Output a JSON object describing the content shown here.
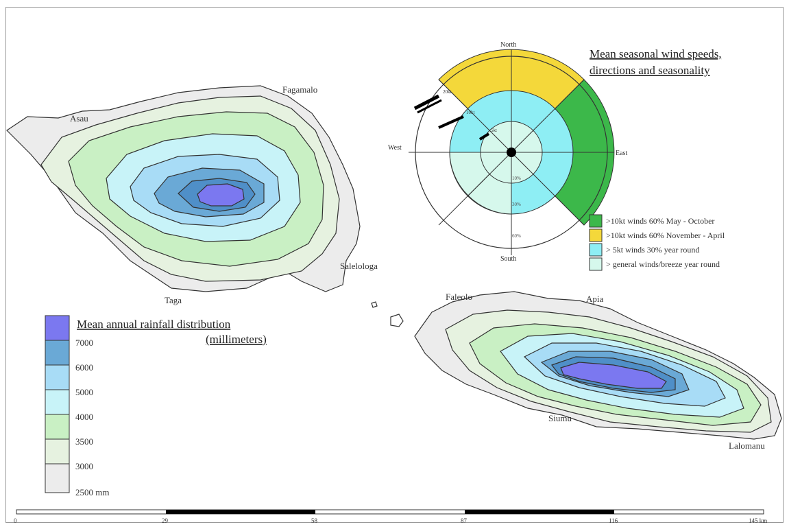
{
  "rainfall_legend": {
    "title_line1": "Mean annual rainfall distribution",
    "title_line2": "(millimeters)",
    "classes": [
      {
        "color": "#7b78f0",
        "label": "7000"
      },
      {
        "color": "#6aa9d6",
        "label": "6000"
      },
      {
        "color": "#a8dcf6",
        "label": "5000"
      },
      {
        "color": "#c8f3f8",
        "label": "4000"
      },
      {
        "color": "#c9f0c4",
        "label": "3500"
      },
      {
        "color": "#e6f2e0",
        "label": "3000"
      },
      {
        "color": "#ececec",
        "label": "2500 mm"
      }
    ]
  },
  "wind_rose": {
    "title_line1": "Mean seasonal wind speeds,",
    "title_line2": "directions and seasonality",
    "compass": {
      "north": "North",
      "south": "South",
      "east": "East",
      "west": "West"
    },
    "ring_labels": [
      "10%",
      "30%",
      "60%"
    ],
    "speed_labels": [
      "20kt",
      "10kt",
      "5kt"
    ],
    "legend": [
      {
        "color": "#3cb84a",
        "label": ">10kt winds 60% May - October"
      },
      {
        "color": "#f4d83a",
        "label": ">10kt winds 60% November - April"
      },
      {
        "color": "#8eeef4",
        "label": "> 5kt winds 30% year round"
      },
      {
        "color": "#d6f8ec",
        "label": "> general winds/breeze year round"
      }
    ]
  },
  "places": {
    "fagamalo": "Fagamalo",
    "asau": "Asau",
    "salelologa": "Salelologa",
    "taga": "Taga",
    "faleolo": "Faleolo",
    "apia": "Apia",
    "siumu": "Siumu",
    "lalomanu": "Lalomanu"
  },
  "scale_bar": {
    "ticks": [
      "0",
      "29",
      "58",
      "87",
      "116",
      "145 km"
    ]
  }
}
